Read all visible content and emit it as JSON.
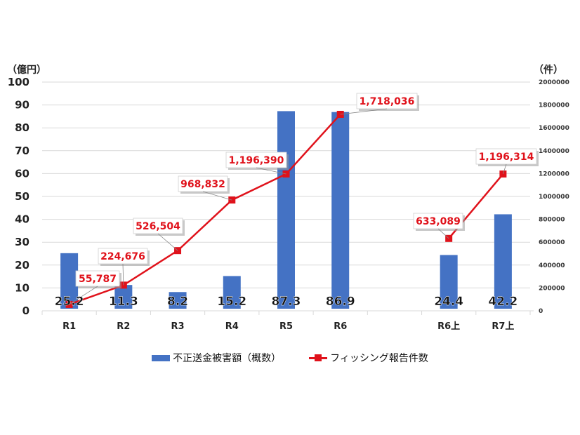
{
  "chart_data": {
    "type": "bar+line",
    "categories": [
      "R1",
      "R2",
      "R3",
      "R4",
      "R5",
      "R6",
      "",
      "R6上",
      "R7上"
    ],
    "series": [
      {
        "name": "不正送金被害額（概数）",
        "type": "bar",
        "axis": "left",
        "color": "#4472c4",
        "values": [
          25.2,
          11.3,
          8.2,
          15.2,
          87.3,
          86.9,
          null,
          24.4,
          42.2
        ],
        "labels": [
          "25.2",
          "11.3",
          "8.2",
          "15.2",
          "87.3",
          "86.9",
          "",
          "24.4",
          "42.2"
        ]
      },
      {
        "name": "フィッシング報告件数",
        "type": "line",
        "axis": "right",
        "color": "#e0121b",
        "segments": [
          [
            0,
            5
          ],
          [
            7,
            8
          ]
        ],
        "values": [
          55787,
          224676,
          526504,
          968832,
          1196390,
          1718036,
          null,
          633089,
          1196314
        ],
        "labels": [
          "55,787",
          "224,676",
          "526,504",
          "968,832",
          "1,196,390",
          "1,718,036",
          "",
          "633,089",
          "1,196,314"
        ]
      }
    ],
    "y_left": {
      "label": "（億円）",
      "ticks": [
        0,
        10,
        20,
        30,
        40,
        50,
        60,
        70,
        80,
        90,
        100
      ],
      "ylim": [
        0,
        100
      ]
    },
    "y_right": {
      "label": "（件）",
      "ticks": [
        0,
        200000,
        400000,
        600000,
        800000,
        1000000,
        1200000,
        1400000,
        1600000,
        1800000,
        2000000
      ],
      "ylim": [
        0,
        2000000
      ]
    },
    "grid": true,
    "legend_position": "bottom"
  },
  "axes": {
    "left_unit": "（億円）",
    "right_unit": "（件）"
  },
  "legend": {
    "bar_label": "不正送金被害額（概数）",
    "line_label": "フィッシング報告件数"
  }
}
